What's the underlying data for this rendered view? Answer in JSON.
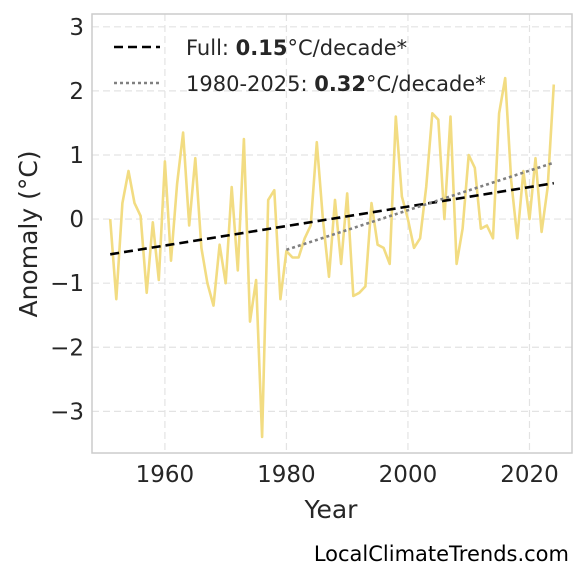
{
  "credit": "LocalClimateTrends.com",
  "legend": [
    {
      "prefix": "Full: ",
      "bold": "0.15",
      "suffix": "°C/decade*",
      "style": "dashed",
      "color": "#000000"
    },
    {
      "prefix": "1980-2025: ",
      "bold": "0.32",
      "suffix": "°C/decade*",
      "style": "dotted",
      "color": "#808080"
    }
  ],
  "chart_data": {
    "type": "line",
    "xlabel": "Year",
    "ylabel": "Anomaly (°C)",
    "xlim": [
      1948,
      2027
    ],
    "ylim": [
      -3.65,
      3.2
    ],
    "xticks": [
      1960,
      1980,
      2000,
      2020
    ],
    "yticks": [
      3,
      2,
      1,
      0,
      -1,
      -2,
      -3
    ],
    "ytick_labels": [
      "3",
      "2",
      "1",
      "0",
      "−1",
      "−2",
      "−3"
    ],
    "xtick_labels": [
      "1960",
      "1980",
      "2000",
      "2020"
    ],
    "grid": true,
    "legend_position": "top-left",
    "series": [
      {
        "color": "#f2dc82",
        "x": [
          1951,
          1952,
          1953,
          1954,
          1955,
          1956,
          1957,
          1958,
          1959,
          1960,
          1961,
          1962,
          1963,
          1964,
          1965,
          1966,
          1967,
          1968,
          1969,
          1970,
          1971,
          1972,
          1973,
          1974,
          1975,
          1976,
          1977,
          1978,
          1979,
          1980,
          1981,
          1982,
          1983,
          1984,
          1985,
          1986,
          1987,
          1988,
          1989,
          1990,
          1991,
          1992,
          1993,
          1994,
          1995,
          1996,
          1997,
          1998,
          1999,
          2000,
          2001,
          2002,
          2003,
          2004,
          2005,
          2006,
          2007,
          2008,
          2009,
          2010,
          2011,
          2012,
          2013,
          2014,
          2015,
          2016,
          2017,
          2018,
          2019,
          2020,
          2021,
          2022,
          2023,
          2024
        ],
        "y": [
          0.0,
          -1.25,
          0.25,
          0.75,
          0.25,
          0.05,
          -1.15,
          -0.05,
          -0.95,
          0.9,
          -0.65,
          0.55,
          1.35,
          -0.1,
          0.95,
          -0.45,
          -1.0,
          -1.35,
          -0.4,
          -1.0,
          0.5,
          -0.8,
          1.25,
          -1.6,
          -0.95,
          -3.4,
          0.3,
          0.45,
          -1.25,
          -0.5,
          -0.6,
          -0.6,
          -0.3,
          -0.1,
          1.2,
          0.0,
          -0.9,
          0.3,
          -0.7,
          0.4,
          -1.2,
          -1.15,
          -1.05,
          0.25,
          -0.4,
          -0.45,
          -0.7,
          1.6,
          0.35,
          0.0,
          -0.45,
          -0.3,
          0.5,
          1.65,
          1.55,
          0.0,
          1.6,
          -0.7,
          -0.15,
          1.0,
          0.8,
          -0.15,
          -0.1,
          -0.3,
          1.65,
          2.2,
          0.6,
          -0.3,
          0.75,
          0.0,
          0.95,
          -0.2,
          0.5,
          2.1
        ]
      },
      {
        "name": "Full: 0.15°C/decade*",
        "style": "dashed",
        "color": "#000000",
        "x": [
          1951,
          2024
        ],
        "y": [
          -0.55,
          0.56
        ]
      },
      {
        "name": "1980-2025: 0.32°C/decade*",
        "style": "dotted",
        "color": "#808080",
        "x": [
          1980,
          2024
        ],
        "y": [
          -0.48,
          0.88
        ]
      }
    ]
  }
}
